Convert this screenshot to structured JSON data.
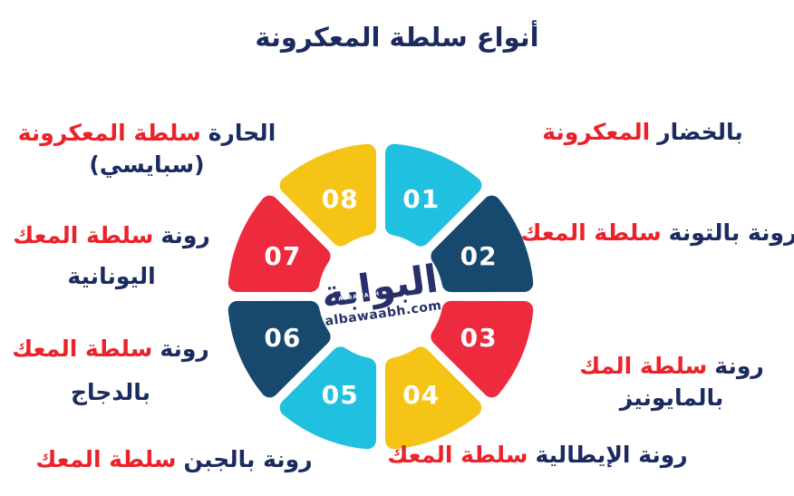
{
  "page": {
    "background": "#FFFFFF"
  },
  "title": {
    "text": "أنواع سلطة المعكرونة"
  },
  "colors": {
    "red_text": "#EA232B",
    "navy_text": "#1B2B5F",
    "cyan": "#1FC0E0",
    "navy": "#17496F",
    "red": "#EE2B3E",
    "yellow": "#F5C417",
    "number": "#FFFFFF",
    "logo": "#283069"
  },
  "wheel": {
    "segments": [
      {
        "num": "01",
        "color_key": "cyan"
      },
      {
        "num": "02",
        "color_key": "navy"
      },
      {
        "num": "03",
        "color_key": "red"
      },
      {
        "num": "04",
        "color_key": "yellow"
      },
      {
        "num": "05",
        "color_key": "cyan"
      },
      {
        "num": "06",
        "color_key": "navy"
      },
      {
        "num": "07",
        "color_key": "red"
      },
      {
        "num": "08",
        "color_key": "yellow"
      }
    ],
    "logo": {
      "arabic": "البوابة",
      "micro": "ALBAWABH",
      "domain": "albawaabh.com"
    }
  },
  "labels": [
    {
      "id": "pasta-with-vegetables",
      "for_segment": "01",
      "lines": [
        {
          "parts": [
            {
              "t": "المعكرونة",
              "c": "red"
            },
            {
              "t": "بالخضار",
              "c": "navy"
            }
          ]
        }
      ]
    },
    {
      "id": "pasta-salad-with-tuna",
      "for_segment": "02",
      "lines": [
        {
          "parts": [
            {
              "t": "سلطة المعك",
              "c": "red"
            },
            {
              "t": "رونة بالتونة",
              "c": "navy"
            }
          ]
        }
      ]
    },
    {
      "id": "pasta-salad-with-mayonnaise",
      "for_segment": "03",
      "lines": [
        {
          "parts": [
            {
              "t": "سلطة المك",
              "c": "red"
            },
            {
              "t": "رونة",
              "c": "navy"
            }
          ]
        },
        {
          "parts": [
            {
              "t": "بالمايونيز",
              "c": "navy"
            }
          ]
        }
      ]
    },
    {
      "id": "italian-pasta-salad",
      "for_segment": "04",
      "lines": [
        {
          "parts": [
            {
              "t": "سلطة المعك",
              "c": "red"
            },
            {
              "t": "رونة الإيطالية",
              "c": "navy"
            }
          ]
        }
      ]
    },
    {
      "id": "pasta-salad-with-cheese",
      "for_segment": "05",
      "lines": [
        {
          "parts": [
            {
              "t": "سلطة المعك",
              "c": "red"
            },
            {
              "t": "رونة بالجبن",
              "c": "navy"
            }
          ]
        }
      ]
    },
    {
      "id": "pasta-salad-with-chicken",
      "for_segment": "06",
      "lines": [
        {
          "parts": [
            {
              "t": "سلطة المعك",
              "c": "red"
            },
            {
              "t": "رونة",
              "c": "navy"
            }
          ]
        },
        {
          "parts": [
            {
              "t": "بالدجاج",
              "c": "navy"
            }
          ]
        }
      ]
    },
    {
      "id": "greek-pasta-salad",
      "for_segment": "07",
      "lines": [
        {
          "parts": [
            {
              "t": "سلطة المعك",
              "c": "red"
            },
            {
              "t": "رونة",
              "c": "navy"
            }
          ]
        },
        {
          "parts": [
            {
              "t": "اليونانية",
              "c": "navy"
            }
          ]
        }
      ]
    },
    {
      "id": "hot-spicy-pasta-salad",
      "for_segment": "08",
      "lines": [
        {
          "parts": [
            {
              "t": "سلطة المعكرونة",
              "c": "red"
            },
            {
              "t": "الحارة",
              "c": "navy"
            }
          ]
        },
        {
          "parts": [
            {
              "t": "(سبايسي)",
              "c": "navy"
            }
          ]
        }
      ]
    }
  ]
}
